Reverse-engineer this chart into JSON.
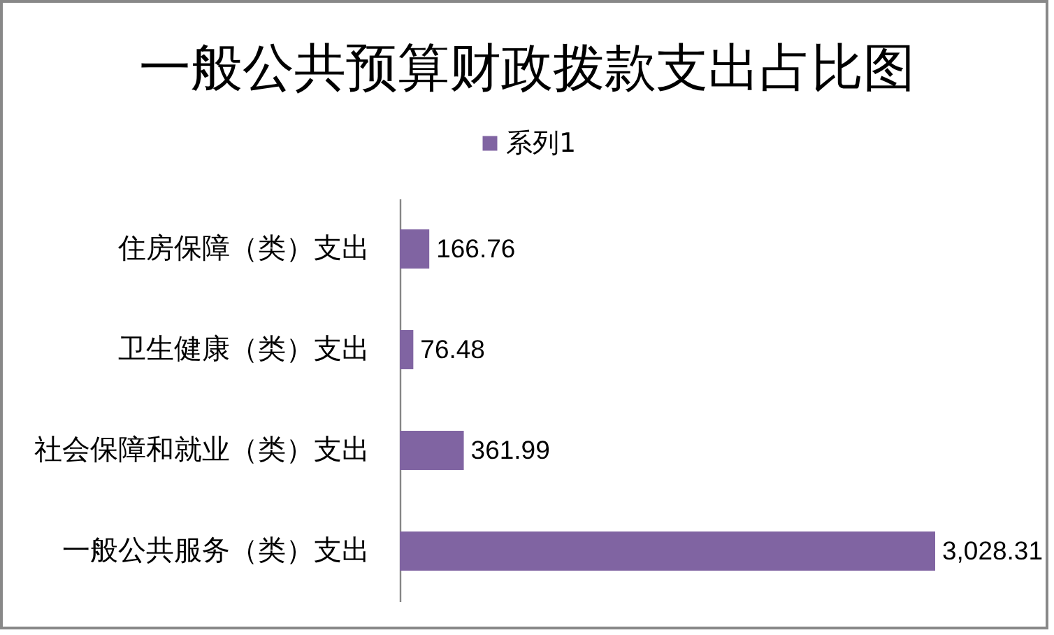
{
  "chart_data": {
    "type": "bar",
    "orientation": "horizontal",
    "title": "一般公共预算财政拨款支出占比图",
    "categories": [
      "住房保障（类）支出",
      "卫生健康（类）支出",
      "社会保障和就业（类）支出",
      "一般公共服务（类）支出"
    ],
    "series": [
      {
        "name": "系列1",
        "color": "#8064a2",
        "values": [
          166.76,
          76.48,
          361.99,
          3028.31
        ],
        "value_labels": [
          "166.76",
          "76.48",
          "361.99",
          "3,028.31"
        ]
      }
    ],
    "tick_labels": "y",
    "legend": "top"
  }
}
